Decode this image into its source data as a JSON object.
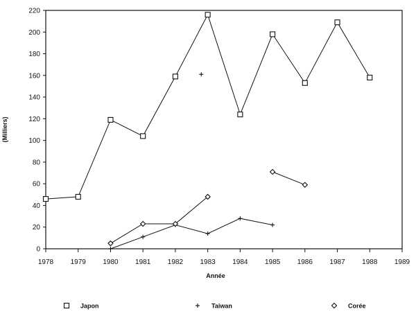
{
  "chart_data": {
    "type": "line",
    "title": "",
    "xlabel": "Année",
    "ylabel": "(Milliers)",
    "xlim": [
      1978,
      1989
    ],
    "ylim": [
      0,
      220
    ],
    "x_ticks": [
      "1978",
      "1979",
      "1980",
      "1981",
      "1982",
      "1983",
      "1984",
      "1985",
      "1986",
      "1987",
      "1988",
      "1989"
    ],
    "y_ticks": [
      "0",
      "20",
      "40",
      "60",
      "80",
      "100",
      "120",
      "140",
      "160",
      "180",
      "200",
      "220"
    ],
    "grid": false,
    "legend_position": "bottom",
    "series": [
      {
        "name": "Japon",
        "marker": "square",
        "segments": [
          [
            [
              1978,
              46
            ],
            [
              1979,
              48
            ],
            [
              1980,
              119
            ],
            [
              1981,
              104
            ],
            [
              1982,
              159
            ],
            [
              1983,
              216
            ],
            [
              1984,
              124
            ],
            [
              1985,
              198
            ],
            [
              1986,
              153
            ],
            [
              1987,
              209
            ],
            [
              1988,
              158
            ]
          ]
        ]
      },
      {
        "name": "Taiwan",
        "marker": "plus",
        "segments": [
          [
            [
              1980,
              0
            ],
            [
              1981,
              11
            ],
            [
              1982,
              22
            ],
            [
              1983,
              14
            ],
            [
              1984,
              28
            ],
            [
              1985,
              22
            ]
          ]
        ],
        "isolated_points": [
          [
            1982.8,
            161
          ]
        ]
      },
      {
        "name": "Corée",
        "marker": "diamond",
        "segments": [
          [
            [
              1980,
              5
            ],
            [
              1981,
              23
            ],
            [
              1982,
              23
            ],
            [
              1983,
              48
            ]
          ],
          [
            [
              1985,
              71
            ],
            [
              1986,
              59
            ]
          ]
        ]
      }
    ]
  }
}
